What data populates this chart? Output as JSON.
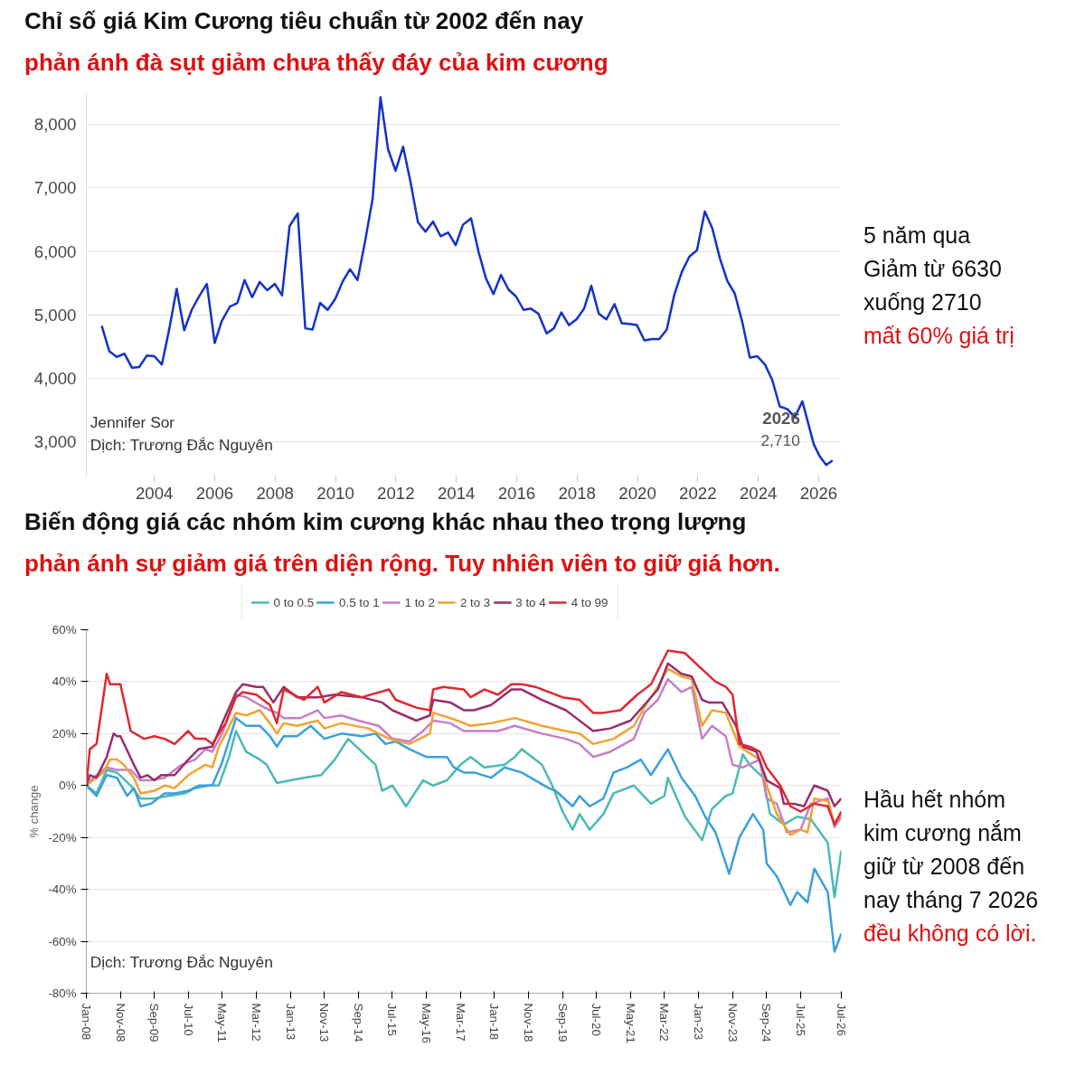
{
  "chart_data": [
    {
      "type": "line",
      "title": "Chỉ số giá Kim Cương tiêu chuẩn từ 2002 đến nay",
      "subtitle": "phản ánh đà sụt giảm chưa thấy đáy của kim cương",
      "color": "#1432c8",
      "grid": "y",
      "xlim": [
        2001.75,
        2026.75
      ],
      "ylim": [
        2450,
        8500
      ],
      "xticks": [
        2004,
        2006,
        2008,
        2010,
        2012,
        2014,
        2016,
        2018,
        2020,
        2022,
        2024,
        2026
      ],
      "yticks": [
        {
          "value": 3000,
          "label": "3,000"
        },
        {
          "value": 4000,
          "label": "4,000"
        },
        {
          "value": 5000,
          "label": "5,000"
        },
        {
          "value": 6000,
          "label": "6,000"
        },
        {
          "value": 7000,
          "label": "7,000"
        },
        {
          "value": 8000,
          "label": "8,000"
        }
      ],
      "x": [
        2002.26,
        2002.51,
        2002.76,
        2003.01,
        2003.26,
        2003.5,
        2003.75,
        2004.0,
        2004.25,
        2004.5,
        2004.74,
        2004.99,
        2005.24,
        2005.49,
        2005.74,
        2006.0,
        2006.23,
        2006.5,
        2006.75,
        2006.99,
        2007.24,
        2007.49,
        2007.74,
        2007.99,
        2008.23,
        2008.48,
        2008.75,
        2009.0,
        2009.24,
        2009.49,
        2009.74,
        2009.99,
        2010.24,
        2010.48,
        2010.73,
        2010.98,
        2011.23,
        2011.49,
        2011.74,
        2011.99,
        2012.24,
        2012.49,
        2012.73,
        2012.98,
        2013.23,
        2013.48,
        2013.73,
        2013.98,
        2014.22,
        2014.49,
        2014.74,
        2014.98,
        2015.23,
        2015.48,
        2015.73,
        2015.98,
        2016.23,
        2016.47,
        2016.72,
        2016.99,
        2017.23,
        2017.48,
        2017.73,
        2017.98,
        2018.23,
        2018.47,
        2018.72,
        2018.97,
        2019.24,
        2019.48,
        2019.73,
        2019.98,
        2020.23,
        2020.48,
        2020.72,
        2020.97,
        2021.22,
        2021.47,
        2021.72,
        2021.97,
        2022.23,
        2022.48,
        2022.73,
        2022.98,
        2023.22,
        2023.47,
        2023.72,
        2023.97,
        2024.22,
        2024.46,
        2024.71,
        2024.96,
        2025.21,
        2025.46,
        2025.84,
        2026.04,
        2026.25,
        2026.46
      ],
      "values": [
        4830,
        4430,
        4340,
        4390,
        4170,
        4180,
        4360,
        4350,
        4220,
        4790,
        5410,
        4760,
        5080,
        5300,
        5490,
        4560,
        4900,
        5130,
        5190,
        5550,
        5280,
        5520,
        5390,
        5490,
        5310,
        6400,
        6600,
        4790,
        4770,
        5190,
        5080,
        5250,
        5530,
        5720,
        5550,
        6160,
        6830,
        8430,
        7610,
        7270,
        7650,
        7080,
        6460,
        6310,
        6470,
        6240,
        6300,
        6100,
        6420,
        6520,
        5990,
        5580,
        5330,
        5630,
        5400,
        5290,
        5080,
        5100,
        5020,
        4710,
        4790,
        5040,
        4840,
        4930,
        5100,
        5460,
        5020,
        4930,
        5170,
        4870,
        4860,
        4840,
        4600,
        4620,
        4620,
        4770,
        5320,
        5680,
        5920,
        6020,
        6630,
        6360,
        5890,
        5530,
        5340,
        4890,
        4330,
        4350,
        4220,
        3980,
        3560,
        3520,
        3390,
        3640,
        2960,
        2770,
        2640,
        2710
      ],
      "annotations": [
        {
          "text": "2026",
          "x": 2026.46,
          "y": 2710
        },
        {
          "text": "2,710",
          "x": 2026.46,
          "y": 2710
        },
        "5 năm qua\nGiảm từ 6630\nxuống 2710",
        "mất 60% giá trị",
        "Jennifer Sor",
        "Dịch: Trương Đắc Nguyên"
      ]
    },
    {
      "type": "line",
      "title": "Biến động giá các nhóm kim cương khác nhau theo trọng lượng",
      "subtitle": "phản ánh sự giảm giá trên diện rộng. Tuy nhiên viên to giữ giá hơn.",
      "ylabel": "% change",
      "grid": "y",
      "legend": "top",
      "xlim": [
        "2008-01",
        "2026-07"
      ],
      "ylim": [
        -80,
        60
      ],
      "yticks": [
        {
          "value": -80,
          "label": "-80%"
        },
        {
          "value": -60,
          "label": "-60%"
        },
        {
          "value": -40,
          "label": "-40%"
        },
        {
          "value": -20,
          "label": "-20%"
        },
        {
          "value": 0,
          "label": "0%"
        },
        {
          "value": 20,
          "label": "20%"
        },
        {
          "value": 40,
          "label": "40%"
        },
        {
          "value": 60,
          "label": "60%"
        }
      ],
      "xticks": [
        {
          "value": "2008-01",
          "label": "Jan-08"
        },
        {
          "value": "2008-11",
          "label": "Nov-08"
        },
        {
          "value": "2009-09",
          "label": "Sep-09"
        },
        {
          "value": "2010-07",
          "label": "Jul-10"
        },
        {
          "value": "2011-05",
          "label": "May-11"
        },
        {
          "value": "2012-03",
          "label": "Mar-12"
        },
        {
          "value": "2013-01",
          "label": "Jan-13"
        },
        {
          "value": "2013-11",
          "label": "Nov-13"
        },
        {
          "value": "2014-09",
          "label": "Sep-14"
        },
        {
          "value": "2015-07",
          "label": "Jul-15"
        },
        {
          "value": "2016-05",
          "label": "May-16"
        },
        {
          "value": "2017-03",
          "label": "Mar-17"
        },
        {
          "value": "2018-01",
          "label": "Jan-18"
        },
        {
          "value": "2018-11",
          "label": "Nov-18"
        },
        {
          "value": "2019-09",
          "label": "Sep-19"
        },
        {
          "value": "2020-07",
          "label": "Jul-20"
        },
        {
          "value": "2021-05",
          "label": "May-21"
        },
        {
          "value": "2022-03",
          "label": "Mar-22"
        },
        {
          "value": "2023-01",
          "label": "Jan-23"
        },
        {
          "value": "2023-11",
          "label": "Nov-23"
        },
        {
          "value": "2024-09",
          "label": "Sep-24"
        },
        {
          "value": "2025-07",
          "label": "Jul-25"
        },
        {
          "value": "2026-07",
          "label": "Jul-26"
        }
      ],
      "series": [
        {
          "name": "0 to 0.5",
          "color": "#4bbab3",
          "x": [
            "2008-01",
            "2008-04",
            "2008-07",
            "2008-10",
            "2009-02",
            "2009-05",
            "2009-09",
            "2010-01",
            "2010-06",
            "2010-09",
            "2011-01",
            "2011-04",
            "2011-07",
            "2011-09",
            "2011-12",
            "2012-04",
            "2012-06",
            "2012-09",
            "2013-01",
            "2013-05",
            "2013-10",
            "2014-02",
            "2014-06",
            "2014-10",
            "2015-02",
            "2015-04",
            "2015-07",
            "2015-11",
            "2016-01",
            "2016-04",
            "2016-07",
            "2016-11",
            "2017-03",
            "2017-06",
            "2017-10",
            "2018-04",
            "2018-07",
            "2018-09",
            "2019-03",
            "2019-06",
            "2019-09",
            "2019-12",
            "2020-02",
            "2020-05",
            "2020-09",
            "2020-12",
            "2021-06",
            "2021-11",
            "2022-03",
            "2022-04",
            "2022-09",
            "2023-02",
            "2023-05",
            "2023-09",
            "2023-11",
            "2024-02",
            "2024-04",
            "2024-08",
            "2024-10",
            "2025-02",
            "2025-06",
            "2025-10",
            "2026-03",
            "2026-05",
            "2026-07"
          ],
          "values": [
            0,
            -3,
            6,
            5,
            0,
            -5,
            -5,
            -4,
            -3,
            -1,
            0,
            0,
            11,
            21,
            13,
            10,
            8,
            1,
            2,
            3,
            4,
            10,
            18,
            13,
            8,
            -2,
            0,
            -8,
            -4,
            2,
            0,
            2,
            8,
            11,
            7,
            8,
            11,
            14,
            8,
            0,
            -10,
            -17,
            -11,
            -17,
            -11,
            -3,
            0,
            -7,
            -4,
            3,
            -12,
            -21,
            -9,
            -4,
            -3,
            12,
            8,
            3,
            -11,
            -15,
            -12,
            -13,
            -22,
            -43,
            -25
          ]
        },
        {
          "name": "0.5 to 1",
          "color": "#3aa0dc",
          "x": [
            "2008-01",
            "2008-04",
            "2008-07",
            "2008-10",
            "2009-01",
            "2009-03",
            "2009-05",
            "2009-08",
            "2009-12",
            "2010-03",
            "2010-07",
            "2010-10",
            "2011-02",
            "2011-05",
            "2011-09",
            "2011-12",
            "2012-04",
            "2012-07",
            "2012-09",
            "2012-11",
            "2013-03",
            "2013-07",
            "2013-11",
            "2014-04",
            "2014-10",
            "2015-02",
            "2015-05",
            "2015-08",
            "2015-12",
            "2016-05",
            "2016-11",
            "2017-01",
            "2017-04",
            "2017-07",
            "2017-12",
            "2018-04",
            "2018-09",
            "2019-01",
            "2019-05",
            "2019-07",
            "2019-12",
            "2020-02",
            "2020-05",
            "2020-09",
            "2020-12",
            "2021-04",
            "2021-08",
            "2021-11",
            "2022-04",
            "2022-08",
            "2022-12",
            "2023-03",
            "2023-06",
            "2023-10",
            "2024-01",
            "2024-05",
            "2024-08",
            "2024-09",
            "2024-12",
            "2025-04",
            "2025-06",
            "2025-09",
            "2025-11",
            "2026-03",
            "2026-05",
            "2026-07"
          ],
          "values": [
            0,
            -4,
            4,
            3,
            -4,
            -1,
            -8,
            -7,
            -3,
            -3,
            -2,
            0,
            0,
            9,
            26,
            23,
            23,
            19,
            15,
            19,
            19,
            23,
            18,
            20,
            19,
            20,
            16,
            17,
            14,
            11,
            11,
            7,
            5,
            5,
            3,
            7,
            5,
            2,
            -1,
            -2,
            -8,
            -4,
            -8,
            -5,
            5,
            7,
            10,
            4,
            14,
            3,
            -4,
            -12,
            -18,
            -34,
            -20,
            -11,
            -17,
            -30,
            -35,
            -46,
            -41,
            -45,
            -32,
            -41,
            -64,
            -57
          ]
        },
        {
          "name": "1 to 2",
          "color": "#c57fc7",
          "x": [
            "2008-01",
            "2008-03",
            "2008-07",
            "2008-10",
            "2009-02",
            "2009-05",
            "2009-08",
            "2009-12",
            "2010-05",
            "2010-09",
            "2010-12",
            "2011-02",
            "2011-05",
            "2011-09",
            "2011-12",
            "2012-04",
            "2012-07",
            "2012-09",
            "2012-11",
            "2013-04",
            "2013-09",
            "2013-11",
            "2014-04",
            "2014-09",
            "2015-03",
            "2015-07",
            "2015-12",
            "2016-04",
            "2016-07",
            "2016-12",
            "2017-04",
            "2017-08",
            "2018-02",
            "2018-07",
            "2019-03",
            "2019-10",
            "2020-02",
            "2020-06",
            "2020-11",
            "2021-06",
            "2021-09",
            "2022-01",
            "2022-04",
            "2022-08",
            "2022-11",
            "2023-02",
            "2023-05",
            "2023-09",
            "2023-11",
            "2024-02",
            "2024-07",
            "2024-09",
            "2024-12",
            "2025-03",
            "2025-07",
            "2025-10",
            "2026-03",
            "2026-05",
            "2026-07"
          ],
          "values": [
            0,
            3,
            7,
            6,
            6,
            2,
            2,
            3,
            8,
            10,
            14,
            13,
            20,
            35,
            34,
            31,
            29,
            28,
            26,
            26,
            29,
            26,
            27,
            25,
            23,
            18,
            17,
            21,
            25,
            24,
            21,
            21,
            21,
            23,
            20,
            18,
            16,
            11,
            13,
            18,
            28,
            33,
            41,
            36,
            38,
            18,
            23,
            19,
            8,
            7,
            10,
            -5,
            -7,
            -18,
            -17,
            -7,
            -5,
            -16,
            -12
          ]
        },
        {
          "name": "2 to 3",
          "color": "#f0a330",
          "x": [
            "2008-01",
            "2008-03",
            "2008-06",
            "2008-08",
            "2008-10",
            "2008-12",
            "2009-03",
            "2009-05",
            "2009-09",
            "2009-12",
            "2010-03",
            "2010-07",
            "2010-12",
            "2011-02",
            "2011-04",
            "2011-06",
            "2011-09",
            "2011-12",
            "2012-04",
            "2012-07",
            "2012-09",
            "2012-11",
            "2013-03",
            "2013-09",
            "2013-11",
            "2014-04",
            "2014-12",
            "2015-06",
            "2015-12",
            "2016-06",
            "2016-07",
            "2016-12",
            "2017-06",
            "2017-12",
            "2018-07",
            "2019-03",
            "2019-10",
            "2020-02",
            "2020-06",
            "2020-12",
            "2021-06",
            "2021-09",
            "2022-01",
            "2022-04",
            "2022-08",
            "2022-11",
            "2023-02",
            "2023-05",
            "2023-09",
            "2024-01",
            "2024-07",
            "2024-09",
            "2024-12",
            "2025-04",
            "2025-07",
            "2025-09",
            "2025-11",
            "2026-03",
            "2026-05",
            "2026-07"
          ],
          "values": [
            0,
            2,
            5,
            10,
            10,
            8,
            3,
            -3,
            -2,
            0,
            -1,
            4,
            8,
            7,
            15,
            20,
            28,
            27,
            29,
            24,
            20,
            24,
            23,
            25,
            22,
            24,
            22,
            18,
            16,
            20,
            28,
            26,
            23,
            24,
            26,
            23,
            21,
            20,
            16,
            18,
            23,
            30,
            38,
            45,
            42,
            41,
            23,
            29,
            28,
            15,
            10,
            0,
            -11,
            -19,
            -17,
            -18,
            -5,
            -6,
            -15,
            -11
          ]
        },
        {
          "name": "3 to 4",
          "color": "#9b2c6e",
          "x": [
            "2008-01",
            "2008-02",
            "2008-04",
            "2008-07",
            "2008-09",
            "2008-10",
            "2008-11",
            "2009-03",
            "2009-05",
            "2009-07",
            "2009-09",
            "2009-11",
            "2010-03",
            "2010-07",
            "2010-10",
            "2011-02",
            "2011-04",
            "2011-06",
            "2011-09",
            "2011-11",
            "2012-03",
            "2012-05",
            "2012-08",
            "2012-11",
            "2013-03",
            "2013-09",
            "2014-02",
            "2014-10",
            "2015-04",
            "2015-07",
            "2016-02",
            "2016-06",
            "2016-07",
            "2016-12",
            "2017-04",
            "2017-07",
            "2017-12",
            "2018-06",
            "2018-09",
            "2019-03",
            "2019-10",
            "2020-01",
            "2020-06",
            "2020-11",
            "2021-05",
            "2021-09",
            "2022-01",
            "2022-04",
            "2022-08",
            "2022-11",
            "2023-02",
            "2023-04",
            "2023-08",
            "2023-12",
            "2024-02",
            "2024-06",
            "2024-09",
            "2025-01",
            "2025-02",
            "2025-05",
            "2025-08",
            "2025-11",
            "2026-03",
            "2026-05",
            "2026-07"
          ],
          "values": [
            0,
            4,
            3,
            11,
            20,
            19,
            19,
            8,
            3,
            4,
            2,
            4,
            4,
            10,
            14,
            15,
            21,
            27,
            36,
            39,
            38,
            38,
            32,
            38,
            34,
            34,
            35,
            34,
            32,
            29,
            25,
            27,
            33,
            32,
            29,
            29,
            31,
            37,
            37,
            33,
            29,
            26,
            21,
            22,
            25,
            31,
            37,
            47,
            43,
            42,
            33,
            32,
            32,
            23,
            15,
            13,
            2,
            -1,
            -7,
            -7,
            -8,
            0,
            -2,
            -8,
            -5
          ]
        },
        {
          "name": "4 to 99",
          "color": "#e0282e",
          "x": [
            "2008-01",
            "2008-02",
            "2008-04",
            "2008-07",
            "2008-08",
            "2008-11",
            "2009-02",
            "2009-06",
            "2009-09",
            "2009-12",
            "2010-03",
            "2010-07",
            "2010-09",
            "2010-12",
            "2011-02",
            "2011-06",
            "2011-09",
            "2011-11",
            "2012-03",
            "2012-07",
            "2012-09",
            "2012-11",
            "2013-05",
            "2013-09",
            "2013-11",
            "2014-04",
            "2014-10",
            "2015-06",
            "2015-08",
            "2016-02",
            "2016-06",
            "2016-07",
            "2016-10",
            "2017-04",
            "2017-06",
            "2017-10",
            "2018-02",
            "2018-06",
            "2018-09",
            "2019-01",
            "2019-09",
            "2020-02",
            "2020-06",
            "2020-09",
            "2021-02",
            "2021-07",
            "2021-11",
            "2022-04",
            "2022-09",
            "2023-01",
            "2023-06",
            "2023-09",
            "2023-11",
            "2024-01",
            "2024-04",
            "2024-07",
            "2024-09",
            "2025-01",
            "2025-04",
            "2025-07",
            "2025-11",
            "2026-03",
            "2026-05",
            "2026-07"
          ],
          "values": [
            0,
            14,
            16,
            43,
            39,
            39,
            21,
            18,
            19,
            18,
            16,
            21,
            18,
            18,
            16,
            24,
            34,
            36,
            35,
            31,
            24,
            37,
            33,
            38,
            32,
            36,
            34,
            37,
            33,
            30,
            29,
            37,
            38,
            37,
            34,
            37,
            35,
            39,
            39,
            38,
            34,
            33,
            28,
            28,
            29,
            35,
            39,
            52,
            51,
            46,
            40,
            38,
            35,
            16,
            15,
            13,
            7,
            0,
            -8,
            -10,
            -7,
            -8,
            -15,
            -10
          ]
        }
      ],
      "annotations": [
        "Hầu hết nhóm\nkim cương nắm\ngiữ từ 2008 đến\nnay tháng 7 2026",
        "đều không có lời.",
        "Dịch: Trương Đắc Nguyên"
      ]
    }
  ]
}
